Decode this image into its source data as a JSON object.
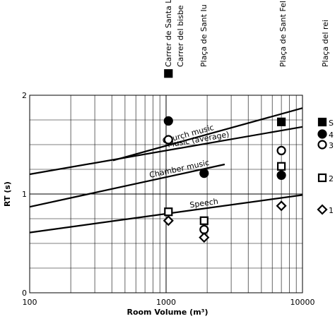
{
  "chart_data": {
    "type": "scatter",
    "x_label": "Room Volume (m³)",
    "y_label": "RT (s)",
    "xlim": [
      100,
      10000
    ],
    "xticks": [
      100,
      1000,
      10000
    ],
    "xminor": [
      200,
      300,
      400,
      500,
      600,
      700,
      800,
      900,
      2000,
      3000,
      4000,
      5000,
      6000,
      7000,
      8000,
      9000
    ],
    "log_x": true,
    "ylim": [
      0,
      2
    ],
    "yticks": [
      0,
      1,
      2
    ],
    "yminor": [
      0.25,
      0.5,
      0.75,
      1.25,
      1.5,
      1.75
    ],
    "grid": true,
    "annotations": [
      "Carrer de Santa Llúcia",
      "Carrer del bisbe",
      "Plaça de Sant Iu",
      "Plaça de Sant Felip Neri",
      "Plaça del rei"
    ],
    "series": [
      {
        "name": "S",
        "marker": "square",
        "filled": true,
        "color": "#000000",
        "x": [
          1040,
          7000
        ],
        "values": [
          2.22,
          1.73
        ]
      },
      {
        "name": "4",
        "marker": "circle",
        "filled": true,
        "color": "#000000",
        "x": [
          1040,
          1900,
          7000
        ],
        "values": [
          1.74,
          1.21,
          1.19
        ]
      },
      {
        "name": "3",
        "marker": "circle",
        "filled": false,
        "color": "#000000",
        "x": [
          1040,
          1900,
          7000
        ],
        "values": [
          1.55,
          0.64,
          1.44
        ]
      },
      {
        "name": "2",
        "marker": "square",
        "filled": false,
        "color": "#000000",
        "x": [
          1040,
          1900,
          7000
        ],
        "values": [
          0.82,
          0.73,
          1.28
        ]
      },
      {
        "name": "1",
        "marker": "diamond",
        "filled": false,
        "color": "#000000",
        "x": [
          1040,
          1900,
          7000
        ],
        "values": [
          0.73,
          0.56,
          0.88
        ]
      }
    ],
    "lines": [
      {
        "name": "Church music",
        "x": [
          408,
          10000
        ],
        "values": [
          1.34,
          1.87
        ]
      },
      {
        "name": "Music (average)",
        "x": [
          100,
          10000
        ],
        "values": [
          1.2,
          1.68
        ]
      },
      {
        "name": "Chamber music",
        "x": [
          100,
          2690
        ],
        "values": [
          0.87,
          1.3
        ]
      },
      {
        "name": "Speech",
        "x": [
          100,
          10000
        ],
        "values": [
          0.61,
          0.99
        ]
      }
    ]
  }
}
